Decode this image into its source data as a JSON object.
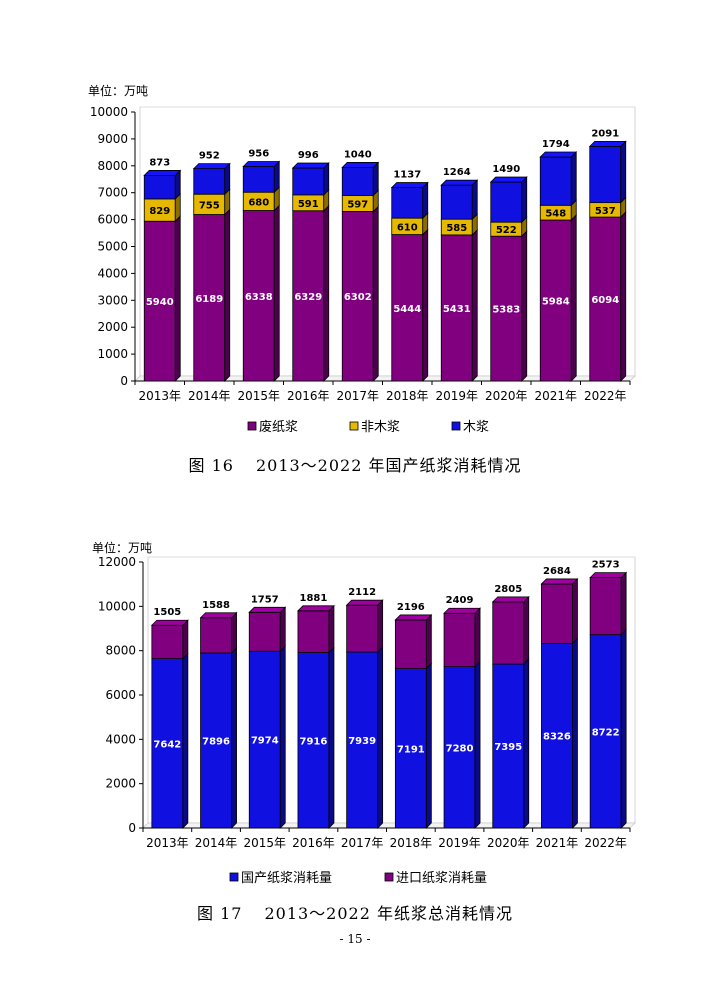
{
  "chart_data": [
    {
      "type": "bar",
      "stacked": true,
      "unit_label": "单位：万吨",
      "categories": [
        "2013年",
        "2014年",
        "2015年",
        "2016年",
        "2017年",
        "2018年",
        "2019年",
        "2020年",
        "2021年",
        "2022年"
      ],
      "ylim": [
        0,
        10000
      ],
      "yticks": [
        0,
        1000,
        2000,
        3000,
        4000,
        5000,
        6000,
        7000,
        8000,
        9000,
        10000
      ],
      "grid": false,
      "legend_position": "bottom",
      "series": [
        {
          "name": "废纸浆",
          "color": "#800080",
          "values": [
            5940,
            6189,
            6338,
            6329,
            6302,
            5444,
            5431,
            5383,
            5984,
            6094
          ]
        },
        {
          "name": "非木浆",
          "color": "#e6b800",
          "values": [
            829,
            755,
            680,
            591,
            597,
            610,
            585,
            522,
            548,
            537
          ]
        },
        {
          "name": "木浆",
          "color": "#1010e0",
          "values": [
            873,
            952,
            956,
            996,
            1040,
            1137,
            1264,
            1490,
            1794,
            2091
          ]
        }
      ]
    },
    {
      "type": "bar",
      "stacked": true,
      "unit_label": "单位：万吨",
      "categories": [
        "2013年",
        "2014年",
        "2015年",
        "2016年",
        "2017年",
        "2018年",
        "2019年",
        "2020年",
        "2021年",
        "2022年"
      ],
      "ylim": [
        0,
        12000
      ],
      "yticks": [
        0,
        2000,
        4000,
        6000,
        8000,
        10000,
        12000
      ],
      "grid": false,
      "legend_position": "bottom",
      "series": [
        {
          "name": "国产纸浆消耗量",
          "color": "#1010e0",
          "values": [
            7642,
            7896,
            7974,
            7916,
            7939,
            7191,
            7280,
            7395,
            8326,
            8722
          ]
        },
        {
          "name": "进口纸浆消耗量",
          "color": "#800080",
          "values": [
            1505,
            1588,
            1757,
            1881,
            2112,
            2196,
            2409,
            2805,
            2684,
            2573
          ]
        }
      ]
    }
  ],
  "captions": {
    "fig16_number": "图 16",
    "fig16_text": "2013～2022 年国产纸浆消耗情况",
    "fig17_number": "图 17",
    "fig17_text": "2013～2022 年纸浆总消耗情况"
  },
  "page_number": "- 15 -"
}
